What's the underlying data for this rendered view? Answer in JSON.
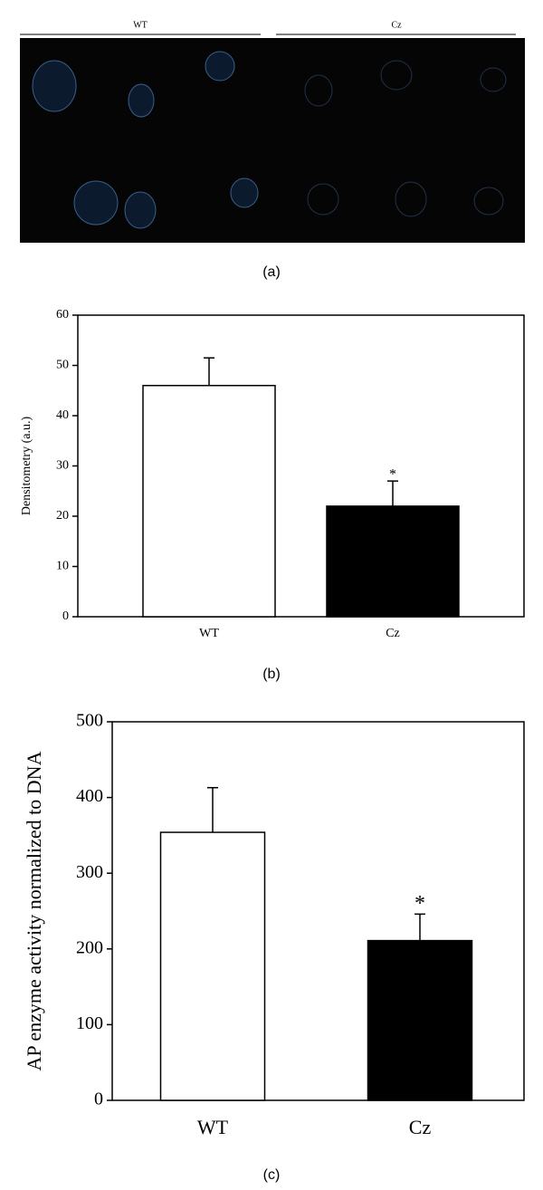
{
  "panel_a": {
    "labels": [
      "WT",
      "Cz"
    ],
    "caption": "(a)"
  },
  "chart_data": [
    {
      "type": "bar",
      "caption": "(b)",
      "y_label": "Densitometry (a.u.)",
      "categories": [
        "WT",
        "Cz"
      ],
      "values": [
        46,
        22
      ],
      "errors": [
        5.5,
        5
      ],
      "colors": [
        "#ffffff",
        "#000000"
      ],
      "ylim": [
        0,
        60
      ],
      "yticks": [
        0,
        10,
        20,
        30,
        40,
        50,
        60
      ],
      "annotations": [
        {
          "category": "Cz",
          "text": "*"
        }
      ]
    },
    {
      "type": "bar",
      "caption": "(c)",
      "y_label": "AP enzyme activity normalized to DNA",
      "categories": [
        "WT",
        "Cz"
      ],
      "values": [
        354,
        211
      ],
      "errors": [
        59,
        35
      ],
      "colors": [
        "#ffffff",
        "#000000"
      ],
      "ylim": [
        0,
        500
      ],
      "yticks": [
        0,
        100,
        200,
        300,
        400,
        500
      ],
      "annotations": [
        {
          "category": "Cz",
          "text": "*"
        }
      ]
    }
  ]
}
